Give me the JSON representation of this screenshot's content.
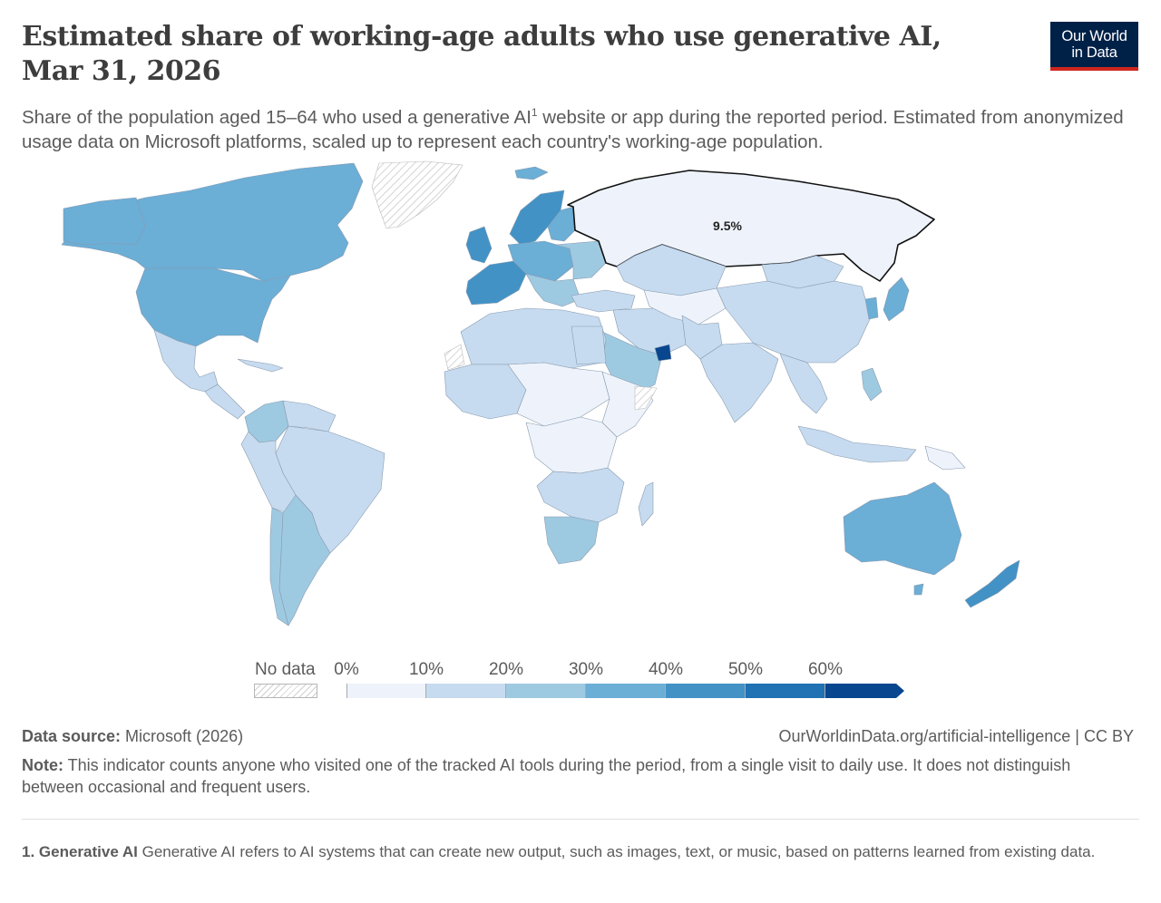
{
  "header": {
    "title": "Estimated share of working-age adults who use generative AI, Mar 31, 2026",
    "subtitle_before_sup": "Share of the population aged 15–64 who used a generative AI",
    "subtitle_sup": "1",
    "subtitle_after_sup": " website or app during the reported period. Estimated from anonymized usage data on Microsoft platforms, scaled up to represent each country's working-age population.",
    "logo_line1": "Our World",
    "logo_line2": "in Data"
  },
  "map": {
    "highlighted_label": "9.5%",
    "highlighted_country": "Russia"
  },
  "legend": {
    "no_data_label": "No data",
    "ticks": [
      "0%",
      "10%",
      "20%",
      "30%",
      "40%",
      "50%",
      "60%"
    ],
    "colors": [
      "#eef3fb",
      "#c6dbef",
      "#9ecae1",
      "#6baed6",
      "#4292c6",
      "#2171b5",
      "#08468f"
    ],
    "no_data_color": "#dcdcdc"
  },
  "footer": {
    "source_label": "Data source:",
    "source_value": " Microsoft (2026)",
    "url": "OurWorldinData.org/artificial-intelligence | CC BY",
    "note_label": "Note:",
    "note_text": " This indicator counts anyone who visited one of the tracked AI tools during the period, from a single visit to daily use. It does not distinguish between occasional and frequent users.",
    "footnote_label": "1. Generative AI",
    "footnote_text": " Generative AI refers to AI systems that can create new output, such as images, text, or music, based on patterns learned from existing data."
  }
}
